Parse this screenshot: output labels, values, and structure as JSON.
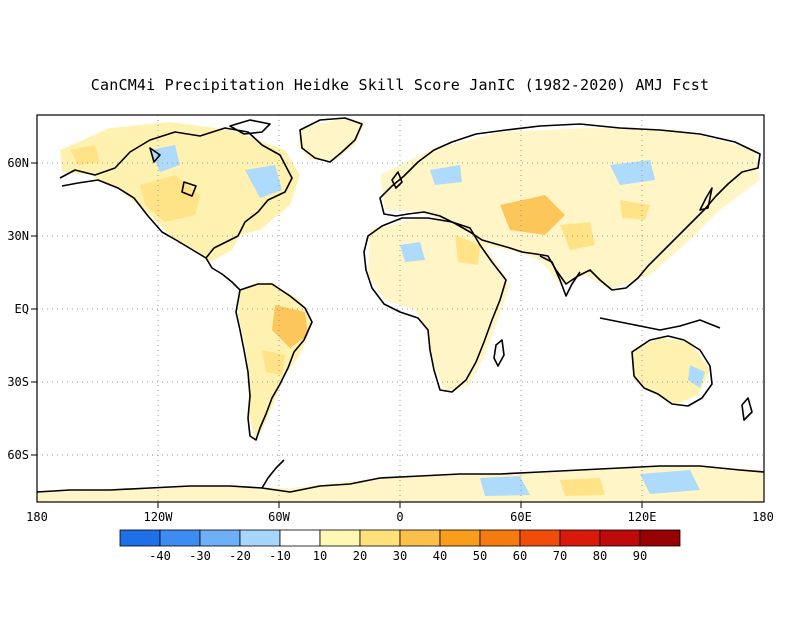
{
  "title": "CanCM4i Precipitation Heidke Skill Score JanIC (1982-2020) AMJ Fcst",
  "map": {
    "lat_labels": [
      "60N",
      "30N",
      "EQ",
      "30S",
      "60S"
    ],
    "lon_labels": [
      "180",
      "120W",
      "60W",
      "0",
      "60E",
      "120E",
      "180"
    ],
    "gridlines": "dotted",
    "land_outline": "black coastlines",
    "field": "mostly weak positive skill (pale yellow/orange) over land with scattered small negative patches (light blue)"
  },
  "colorbar": {
    "ticks": [
      "-40",
      "-30",
      "-20",
      "-10",
      "10",
      "20",
      "30",
      "40",
      "50",
      "60",
      "70",
      "80",
      "90"
    ],
    "colors": [
      "#1f6fe8",
      "#3c8cf2",
      "#6eaff7",
      "#a6d6fb",
      "#ffffff",
      "#fff7b4",
      "#ffe07a",
      "#fcc04a",
      "#f99d1c",
      "#f57a10",
      "#f04d0b",
      "#d91a0b",
      "#bd0a0a",
      "#960202"
    ]
  }
}
